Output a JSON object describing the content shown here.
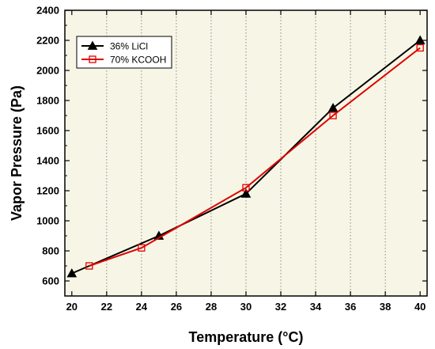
{
  "chart_data": {
    "type": "line",
    "title": "",
    "xlabel": "Temperature (°C)",
    "ylabel": "Vapor Pressure (Pa)",
    "xlim": [
      19.6,
      40.4
    ],
    "ylim": [
      500,
      2400
    ],
    "x_ticks": [
      20,
      22,
      24,
      26,
      28,
      30,
      32,
      34,
      36,
      38,
      40
    ],
    "y_ticks": [
      600,
      800,
      1000,
      1200,
      1400,
      1600,
      1800,
      2000,
      2200,
      2400
    ],
    "grid": "vertical dotted",
    "background_color": "#f7f6e6",
    "legend_position": "top-left",
    "series": [
      {
        "name": "36% LiCl",
        "color": "#000000",
        "marker": "filled-triangle",
        "x": [
          20,
          25,
          30,
          35,
          40
        ],
        "y": [
          650,
          900,
          1180,
          1750,
          2200
        ]
      },
      {
        "name": "70% KCOOH",
        "color": "#e00000",
        "marker": "hollow-square",
        "x": [
          21,
          24,
          30,
          35,
          40
        ],
        "y": [
          700,
          820,
          1220,
          1700,
          2150
        ]
      }
    ]
  }
}
